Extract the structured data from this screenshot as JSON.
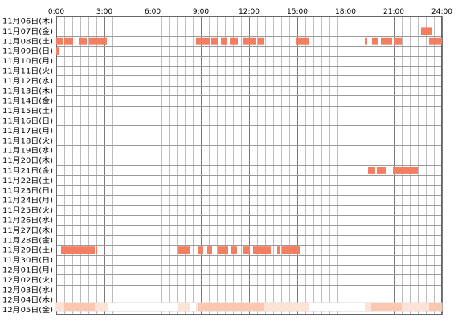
{
  "chart_data": {
    "type": "heatmap",
    "title": "",
    "xlabel": "",
    "ylabel": "",
    "x_range_hours": [
      0,
      24
    ],
    "x_ticks": [
      "0:00",
      "3:00",
      "6:00",
      "9:00",
      "12:00",
      "15:00",
      "18:00",
      "21:00",
      "24:00"
    ],
    "rows": [
      "11月06日(木)",
      "11月07日(金)",
      "11月08日(土)",
      "11月09日(日)",
      "11月10日(月)",
      "11月11日(火)",
      "11月12日(水)",
      "11月13日(木)",
      "11月14日(金)",
      "11月15日(土)",
      "11月16日(日)",
      "11月17日(月)",
      "11月18日(火)",
      "11月19日(水)",
      "11月20日(木)",
      "11月21日(金)",
      "11月22日(土)",
      "11月23日(日)",
      "11月24日(月)",
      "11月25日(火)",
      "11月26日(水)",
      "11月27日(木)",
      "11月28日(金)",
      "11月29日(土)",
      "11月30日(日)",
      "12月01日(月)",
      "12月02日(火)",
      "12月03日(水)",
      "12月04日(木)",
      "12月05日(金)"
    ],
    "bar_color": "#f47e60",
    "intervals": [
      {
        "row": 1,
        "start": 22.7,
        "end": 23.4
      },
      {
        "row": 2,
        "start": 0.0,
        "end": 0.4
      },
      {
        "row": 2,
        "start": 0.5,
        "end": 1.05
      },
      {
        "row": 2,
        "start": 1.4,
        "end": 1.9
      },
      {
        "row": 2,
        "start": 2.05,
        "end": 3.15
      },
      {
        "row": 2,
        "start": 8.7,
        "end": 9.55
      },
      {
        "row": 2,
        "start": 9.65,
        "end": 10.05
      },
      {
        "row": 2,
        "start": 10.25,
        "end": 10.65
      },
      {
        "row": 2,
        "start": 10.8,
        "end": 11.3
      },
      {
        "row": 2,
        "start": 11.6,
        "end": 12.4
      },
      {
        "row": 2,
        "start": 12.55,
        "end": 12.95
      },
      {
        "row": 2,
        "start": 14.9,
        "end": 15.7
      },
      {
        "row": 2,
        "start": 19.2,
        "end": 19.35
      },
      {
        "row": 2,
        "start": 19.65,
        "end": 20.0
      },
      {
        "row": 2,
        "start": 20.2,
        "end": 20.9
      },
      {
        "row": 2,
        "start": 21.0,
        "end": 21.5
      },
      {
        "row": 2,
        "start": 23.2,
        "end": 24.0
      },
      {
        "row": 3,
        "start": 0.0,
        "end": 0.2
      },
      {
        "row": 15,
        "start": 19.4,
        "end": 19.85
      },
      {
        "row": 15,
        "start": 19.95,
        "end": 20.5
      },
      {
        "row": 15,
        "start": 20.95,
        "end": 22.5
      },
      {
        "row": 23,
        "start": 0.3,
        "end": 2.4
      },
      {
        "row": 23,
        "start": 2.45,
        "end": 2.55
      },
      {
        "row": 23,
        "start": 7.6,
        "end": 8.3
      },
      {
        "row": 23,
        "start": 8.8,
        "end": 9.15
      },
      {
        "row": 23,
        "start": 9.35,
        "end": 9.7
      },
      {
        "row": 23,
        "start": 10.05,
        "end": 10.7
      },
      {
        "row": 23,
        "start": 10.85,
        "end": 11.25
      },
      {
        "row": 23,
        "start": 11.65,
        "end": 12.05
      },
      {
        "row": 23,
        "start": 12.25,
        "end": 12.9
      },
      {
        "row": 23,
        "start": 12.95,
        "end": 13.35
      },
      {
        "row": 23,
        "start": 13.75,
        "end": 13.95
      },
      {
        "row": 23,
        "start": 14.05,
        "end": 14.65
      },
      {
        "row": 23,
        "start": 14.75,
        "end": 14.95
      },
      {
        "row": 23,
        "start": 14.3,
        "end": 15.15
      }
    ],
    "summary_colors": {
      "light": "#fde3d6",
      "dark": "#fbc7b0"
    },
    "summary_intervals": [
      {
        "start": 0.0,
        "end": 3.2,
        "level": "light"
      },
      {
        "start": 7.6,
        "end": 8.3,
        "level": "light"
      },
      {
        "start": 8.7,
        "end": 15.7,
        "level": "light"
      },
      {
        "start": 19.2,
        "end": 24.0,
        "level": "light"
      },
      {
        "start": 0.5,
        "end": 2.4,
        "level": "dark"
      },
      {
        "start": 8.8,
        "end": 12.9,
        "level": "dark"
      },
      {
        "start": 19.6,
        "end": 21.5,
        "level": "dark"
      },
      {
        "start": 23.2,
        "end": 24.0,
        "level": "dark"
      }
    ]
  }
}
